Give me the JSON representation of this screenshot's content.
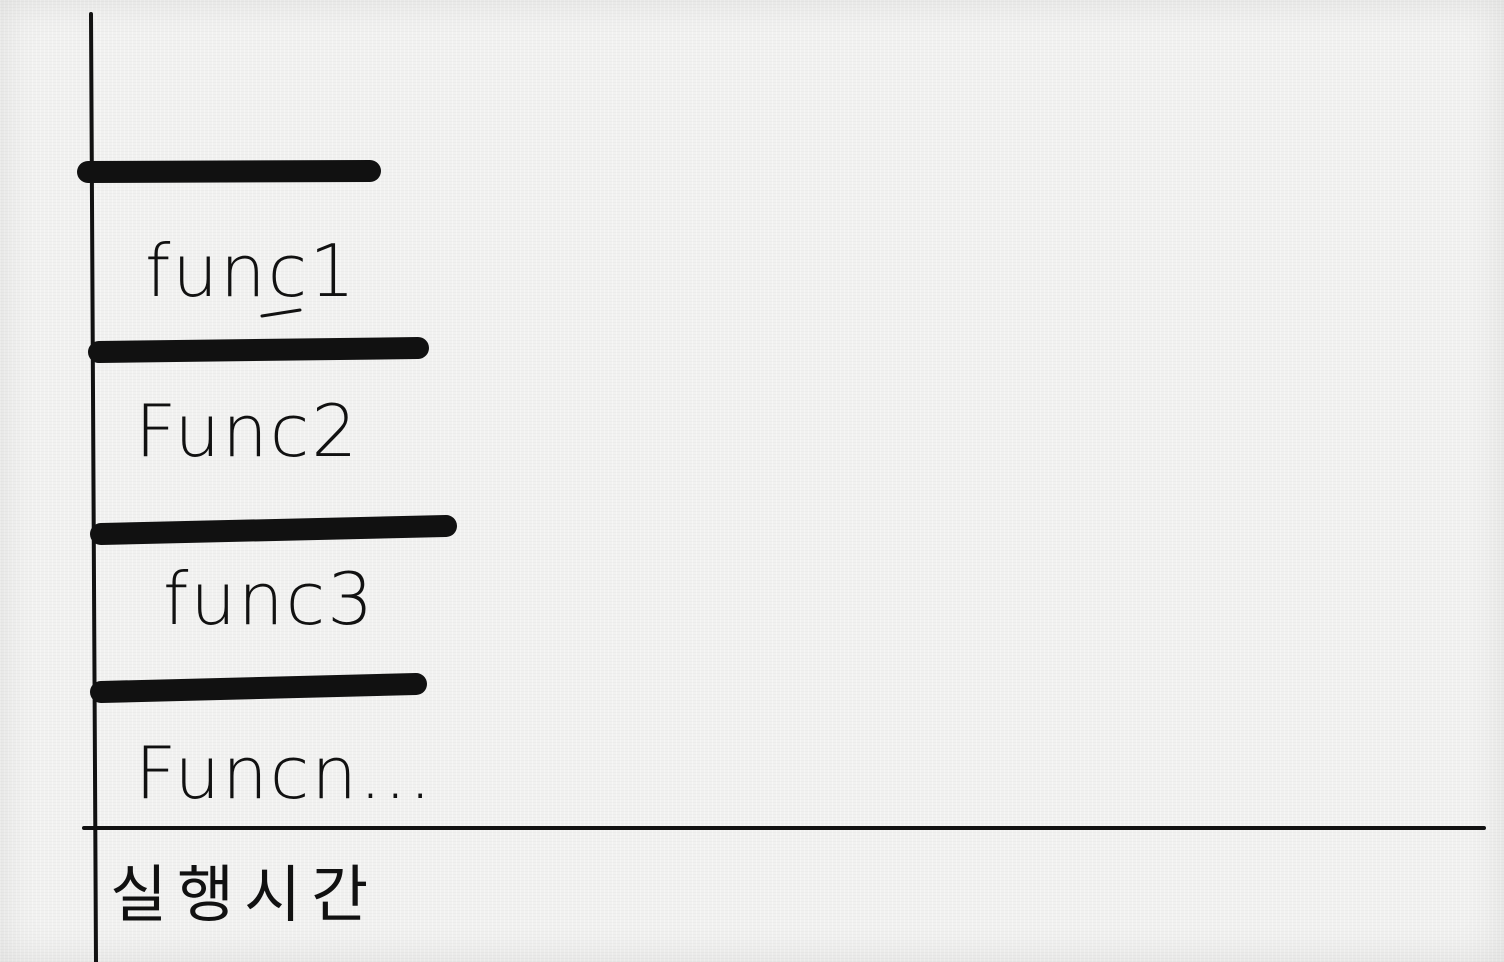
{
  "diagram": {
    "stack_frames": [
      {
        "label": "func1"
      },
      {
        "label": "Func2"
      },
      {
        "label": "func3"
      },
      {
        "label": "Funcn..."
      }
    ],
    "x_axis_label": "실행시간",
    "colors": {
      "ink": "#111111",
      "paper": "#f1f1f0"
    }
  }
}
